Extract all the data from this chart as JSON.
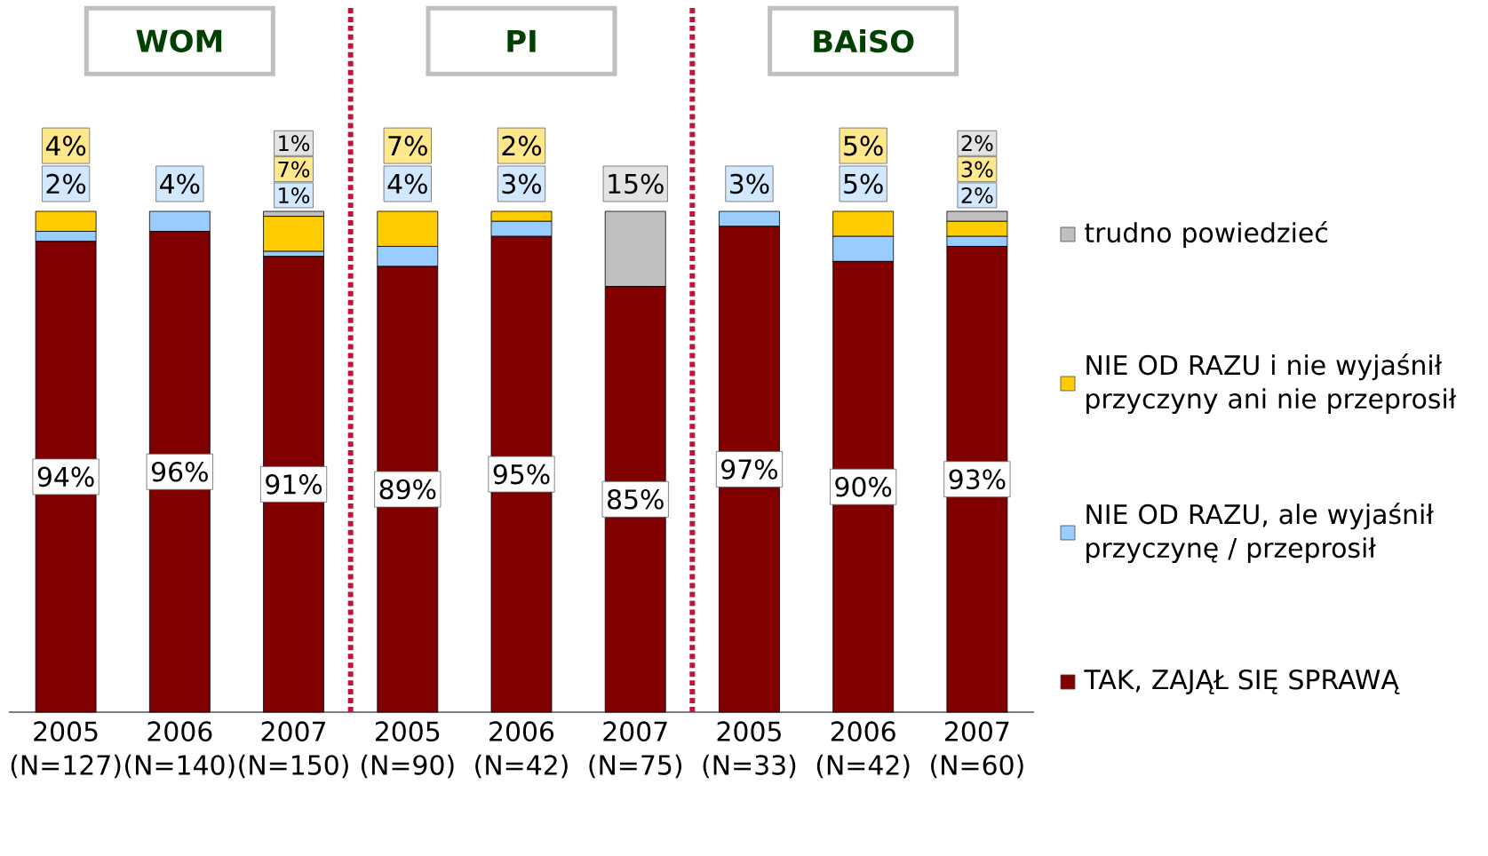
{
  "chart_data": {
    "type": "bar",
    "stacked": true,
    "categories": [
      "2005 (N=127)",
      "2006 (N=140)",
      "2007 (N=150)",
      "2005 (N=90)",
      "2006 (N=42)",
      "2007 (N=75)",
      "2005 (N=33)",
      "2006 (N=42)",
      "2007 (N=60)"
    ],
    "series": [
      {
        "name": "TAK, ZAJĄŁ SIĘ SPRAWĄ",
        "color": "#800000",
        "values": [
          94,
          96,
          91,
          89,
          95,
          85,
          97,
          90,
          93
        ],
        "value_labels": [
          "94%",
          "96%",
          "91%",
          "89%",
          "95%",
          "85%",
          "97%",
          "90%",
          "93%"
        ]
      },
      {
        "name": "NIE OD RAZU, ale wyjaśnił przyczynę / przeprosił",
        "color": "#99ccff",
        "values": [
          2,
          4,
          1,
          4,
          3,
          0,
          3,
          5,
          2
        ],
        "value_labels": [
          "2%",
          "4%",
          "1%",
          "4%",
          "3%",
          null,
          "3%",
          "5%",
          "2%"
        ]
      },
      {
        "name": "NIE OD RAZU i nie wyjaśnił przyczyny ani nie przeprosił",
        "color": "#ffcc00",
        "values": [
          4,
          0,
          7,
          7,
          2,
          0,
          0,
          5,
          3
        ],
        "value_labels": [
          "4%",
          null,
          "7%",
          "7%",
          "2%",
          null,
          null,
          "5%",
          "3%"
        ]
      },
      {
        "name": "trudno powiedzieć",
        "color": "#c0c0c0",
        "values": [
          0,
          0,
          1,
          0,
          0,
          15,
          0,
          0,
          2
        ],
        "value_labels": [
          null,
          null,
          "1%",
          null,
          null,
          "15%",
          null,
          null,
          "2%"
        ]
      }
    ],
    "annotations": [
      "WOM",
      "PI",
      "BAiSO"
    ],
    "tick_labels": "x",
    "legend": "right"
  }
}
